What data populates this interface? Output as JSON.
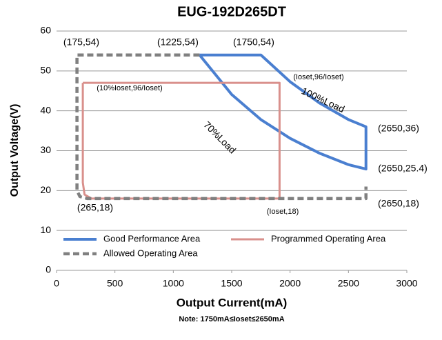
{
  "chart_data": {
    "type": "line",
    "title": "EUG-192D265DT",
    "x_label": "Output Current(mA)",
    "y_label": "Output Voltage(V)",
    "note": "Note:  1750mA≤Ioset≤2650mA",
    "xlim": [
      0,
      3000
    ],
    "xticks": [
      0,
      500,
      1000,
      1500,
      2000,
      2500,
      3000
    ],
    "ylim": [
      0,
      60
    ],
    "yticks": [
      0,
      10,
      20,
      30,
      40,
      50,
      60
    ],
    "grid": true,
    "legend": "lower left",
    "series": [
      {
        "name": "Good Performance Area",
        "color": "#4a7fd0",
        "line_style": "solid",
        "x": [
          1225,
          1750,
          2000,
          2250,
          2500,
          2650,
          2650,
          2500,
          2250,
          2000,
          1750,
          1500,
          1225
        ],
        "values": [
          54,
          54,
          47.3,
          42,
          37.8,
          36,
          25.4,
          26.5,
          29.4,
          33.1,
          37.8,
          44.1,
          54
        ]
      },
      {
        "name": "Programmed Operating Area",
        "color": "#d9908c",
        "line_style": "solid",
        "x": [
          225,
          1910,
          1910,
          300,
          240,
          225,
          225
        ],
        "values": [
          47,
          47,
          18,
          18,
          19,
          22,
          47
        ]
      },
      {
        "name": "Allowed Operating Area",
        "color": "#808080",
        "line_style": "dashed",
        "x": [
          1225,
          175,
          175,
          200,
          265,
          2650,
          2650
        ],
        "values": [
          54,
          54,
          20,
          18.5,
          18,
          18,
          21
        ]
      }
    ],
    "annotations": [
      "(175,54)",
      "(1225,54)",
      "(1750,54)",
      "(Ioset,96/Ioset)",
      "100%Load",
      "(10%Ioset,96/Ioset)",
      "70%Load",
      "(2650,36)",
      "(2650,25.4)",
      "(265,18)",
      "(Ioset,18)",
      "(2650,18)"
    ]
  }
}
